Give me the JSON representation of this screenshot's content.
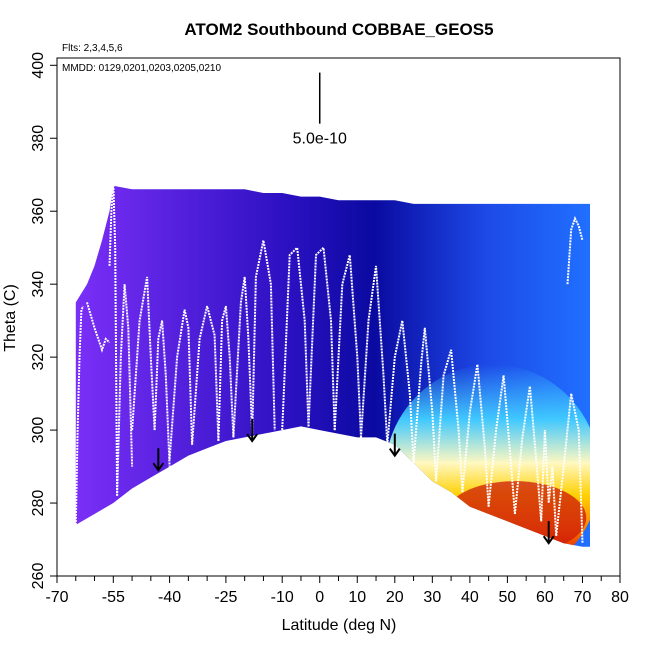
{
  "chart_data": {
    "type": "heatmap",
    "title": "ATOM2 Southbound COBBAE_GEOS5",
    "flights_note": "Flts: 2,3,4,5,6",
    "dates_note": "MMDD: 0129,0201,0203,0205,0210",
    "xlabel": "Latitude (deg N)",
    "ylabel": "Theta (C)",
    "xlim": [
      -70,
      80
    ],
    "ylim": [
      260,
      402
    ],
    "x_ticks": [
      -70,
      -55,
      -40,
      -25,
      -10,
      0,
      10,
      20,
      30,
      40,
      50,
      60,
      70,
      80
    ],
    "x_minor_ticks": [
      -65,
      -60,
      -50,
      -45,
      -35,
      -30,
      -20,
      -15,
      -5,
      5,
      15,
      25,
      35,
      45,
      55,
      65,
      75
    ],
    "y_ticks": [
      260,
      280,
      300,
      320,
      340,
      360,
      380,
      400
    ],
    "scale_bar_label": "5.0e-10",
    "scale_bar_x": 0,
    "scale_bar_y": [
      384,
      398
    ],
    "colors": {
      "low": "#7b2ff7",
      "mid_low": "#0a0aa0",
      "mid": "#00a8ff",
      "mid_high": "#ffe000",
      "high": "#c80000"
    },
    "surface": {
      "lat": [
        -65,
        -60,
        -55,
        -50,
        -45,
        -40,
        -35,
        -30,
        -25,
        -20,
        -15,
        -10,
        -5,
        0,
        5,
        10,
        15,
        20,
        25,
        30,
        35,
        40,
        45,
        50,
        55,
        60,
        65,
        70,
        72
      ],
      "theta": [
        274,
        277,
        280,
        284,
        287,
        290,
        293,
        295,
        297,
        298,
        299,
        300,
        301,
        300,
        299,
        298,
        298,
        296,
        291,
        286,
        283,
        279,
        277,
        275,
        273,
        271,
        269,
        268,
        268
      ]
    },
    "top_boundary": {
      "lat": [
        -65,
        -62,
        -60,
        -58,
        -56,
        -55,
        -50,
        -45,
        -40,
        -35,
        -30,
        -25,
        -20,
        -15,
        -10,
        -5,
        0,
        5,
        10,
        15,
        20,
        25,
        30,
        35,
        40,
        45,
        50,
        55,
        60,
        65,
        70,
        72
      ],
      "theta": [
        335,
        340,
        345,
        352,
        360,
        367,
        366,
        366,
        366,
        366,
        366,
        366,
        366,
        365,
        365,
        364,
        364,
        363,
        363,
        363,
        363,
        362,
        362,
        362,
        362,
        362,
        362,
        362,
        362,
        362,
        362,
        362
      ]
    },
    "flight_profiles": [
      {
        "lat": [
          -65,
          -64.5,
          -64,
          -63.5,
          -63
        ],
        "theta": [
          274,
          300,
          320,
          333,
          334
        ]
      },
      {
        "lat": [
          -62,
          -60,
          -58,
          -57,
          -56
        ],
        "theta": [
          335,
          328,
          322,
          325,
          324
        ]
      },
      {
        "lat": [
          -56,
          -55.5,
          -55,
          -54.5,
          -54
        ],
        "theta": [
          345,
          360,
          368,
          350,
          282
        ]
      },
      {
        "lat": [
          -54,
          -53,
          -52,
          -51,
          -50
        ],
        "theta": [
          282,
          320,
          340,
          328,
          290
        ]
      },
      {
        "lat": [
          -50,
          -48,
          -46,
          -45,
          -44
        ],
        "theta": [
          300,
          330,
          342,
          320,
          300
        ]
      },
      {
        "lat": [
          -44,
          -43,
          -42,
          -41,
          -40
        ],
        "theta": [
          300,
          325,
          330,
          315,
          290
        ]
      },
      {
        "lat": [
          -40,
          -38,
          -36,
          -35,
          -34
        ],
        "theta": [
          292,
          320,
          333,
          328,
          296
        ]
      },
      {
        "lat": [
          -34,
          -32,
          -30,
          -28,
          -27
        ],
        "theta": [
          296,
          325,
          334,
          326,
          297
        ]
      },
      {
        "lat": [
          -27,
          -26,
          -25,
          -24,
          -23
        ],
        "theta": [
          297,
          330,
          334,
          320,
          298
        ]
      },
      {
        "lat": [
          -23,
          -21,
          -20,
          -19,
          -18
        ],
        "theta": [
          298,
          335,
          342,
          325,
          299
        ]
      },
      {
        "lat": [
          -18,
          -17,
          -15,
          -13,
          -12
        ],
        "theta": [
          299,
          342,
          352,
          340,
          300
        ]
      },
      {
        "lat": [
          -10,
          -8,
          -6,
          -4,
          -3
        ],
        "theta": [
          300,
          348,
          350,
          330,
          301
        ]
      },
      {
        "lat": [
          -3,
          -1,
          1,
          3,
          4
        ],
        "theta": [
          301,
          348,
          350,
          330,
          300
        ]
      },
      {
        "lat": [
          4,
          6,
          8,
          10,
          11
        ],
        "theta": [
          300,
          340,
          348,
          320,
          298
        ]
      },
      {
        "lat": [
          11,
          13,
          15,
          17,
          18
        ],
        "theta": [
          298,
          330,
          345,
          315,
          296
        ]
      },
      {
        "lat": [
          18,
          20,
          22,
          24,
          25
        ],
        "theta": [
          296,
          320,
          330,
          310,
          291
        ]
      },
      {
        "lat": [
          25,
          27,
          28,
          30,
          31
        ],
        "theta": [
          291,
          318,
          328,
          305,
          286
        ]
      },
      {
        "lat": [
          31,
          33,
          35,
          37,
          38
        ],
        "theta": [
          286,
          315,
          322,
          300,
          283
        ]
      },
      {
        "lat": [
          38,
          40,
          42,
          44,
          45
        ],
        "theta": [
          283,
          305,
          318,
          295,
          279
        ]
      },
      {
        "lat": [
          45,
          47,
          49,
          51,
          52
        ],
        "theta": [
          279,
          300,
          315,
          290,
          277
        ]
      },
      {
        "lat": [
          52,
          54,
          56,
          58,
          59
        ],
        "theta": [
          277,
          298,
          312,
          288,
          275
        ]
      },
      {
        "lat": [
          59,
          60,
          61,
          62,
          63
        ],
        "theta": [
          275,
          300,
          280,
          290,
          271
        ]
      },
      {
        "lat": [
          63,
          65,
          67,
          69,
          70
        ],
        "theta": [
          271,
          290,
          310,
          300,
          269
        ]
      },
      {
        "lat": [
          66,
          67,
          68,
          69,
          70
        ],
        "theta": [
          340,
          355,
          358,
          356,
          352
        ]
      }
    ],
    "arrows": [
      {
        "lat": -43,
        "theta": 289
      },
      {
        "lat": -18,
        "theta": 297
      },
      {
        "lat": 20,
        "theta": 293
      },
      {
        "lat": 61,
        "theta": 269
      }
    ]
  }
}
